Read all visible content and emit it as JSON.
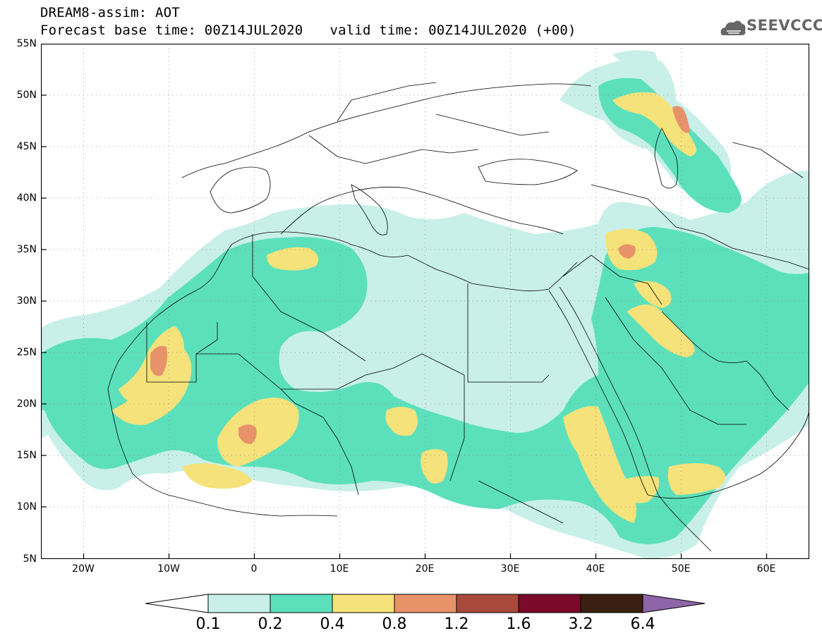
{
  "title": {
    "line1": "DREAM8-assim: AOT",
    "base_time": "Forecast base time: 00Z14JUL2020",
    "valid_time": "valid time: 00Z14JUL2020 (+00)"
  },
  "logo": {
    "text": "SEEVCCC",
    "icon": "cloud-icon"
  },
  "map": {
    "lon_range": [
      -25,
      65
    ],
    "lat_range": [
      5,
      55
    ],
    "latitude_labels": [
      "55N",
      "50N",
      "45N",
      "40N",
      "35N",
      "30N",
      "25N",
      "20N",
      "15N",
      "10N",
      "5N"
    ],
    "longitude_labels": [
      "20W",
      "10W",
      "0",
      "10E",
      "20E",
      "30E",
      "40E",
      "50E",
      "60E"
    ]
  },
  "legend": {
    "levels": [
      "0.1",
      "0.2",
      "0.4",
      "0.8",
      "1.2",
      "1.6",
      "3.2",
      "6.4"
    ],
    "colors": [
      "#ffffff",
      "#c8f0e8",
      "#5ce0bc",
      "#f5e27a",
      "#e8926a",
      "#a84a3c",
      "#7a0a2a",
      "#3a2010",
      "#8e64a8"
    ]
  },
  "colors": {
    "c01": "#c8f0e8",
    "c02": "#5ce0bc",
    "c04": "#f5e27a",
    "c08": "#e8926a",
    "c12": "#a84a3c"
  }
}
